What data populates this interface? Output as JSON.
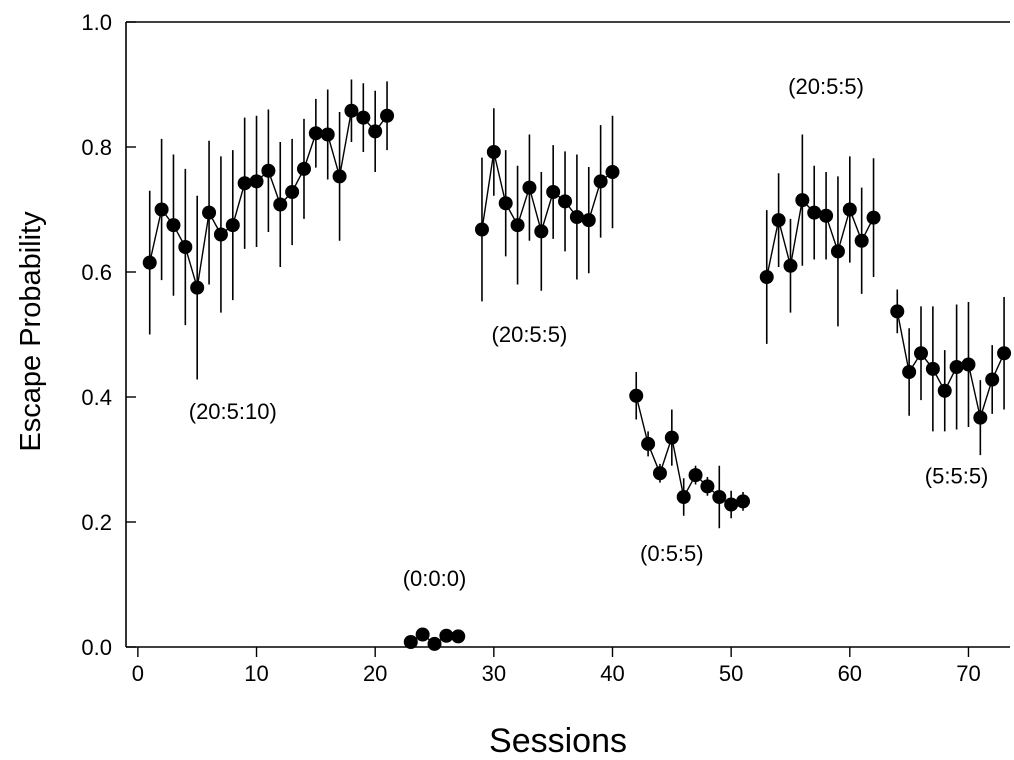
{
  "chart_data": {
    "type": "scatter",
    "title": "",
    "xlabel": "Sessions",
    "ylabel": "Escape Probability",
    "xlim": [
      -1,
      73.5
    ],
    "ylim": [
      0.0,
      1.0
    ],
    "xticks": [
      0,
      10,
      20,
      30,
      40,
      50,
      60,
      70
    ],
    "yticks": [
      0.0,
      0.2,
      0.4,
      0.6,
      0.8,
      1.0
    ],
    "xtick_labels": [
      "0",
      "10",
      "20",
      "30",
      "40",
      "50",
      "60",
      "70"
    ],
    "ytick_labels": [
      "0.0",
      "0.2",
      "0.4",
      "0.6",
      "0.8",
      "1.0"
    ],
    "grid": false,
    "marker_color": "#000000",
    "series": [
      {
        "x": [
          1,
          2,
          3,
          4,
          5,
          6,
          7,
          8,
          9,
          10,
          11,
          12,
          13,
          14,
          15,
          16,
          17,
          18,
          19,
          20,
          21
        ],
        "y": [
          0.615,
          0.7,
          0.675,
          0.64,
          0.575,
          0.695,
          0.66,
          0.675,
          0.742,
          0.745,
          0.762,
          0.708,
          0.728,
          0.765,
          0.822,
          0.82,
          0.753,
          0.858,
          0.847,
          0.825,
          0.85
        ],
        "err": [
          0.115,
          0.113,
          0.113,
          0.125,
          0.147,
          0.115,
          0.125,
          0.12,
          0.105,
          0.105,
          0.098,
          0.1,
          0.085,
          0.08,
          0.055,
          0.072,
          0.103,
          0.05,
          0.055,
          0.065,
          0.055
        ]
      },
      {
        "x": [
          23,
          24,
          25,
          26,
          27
        ],
        "y": [
          0.008,
          0.02,
          0.005,
          0.018,
          0.017
        ],
        "err": [
          0.006,
          0.005,
          0.004,
          0.005,
          0.004
        ]
      },
      {
        "x": [
          29,
          30,
          31,
          32,
          33,
          34,
          35,
          36,
          37,
          38,
          39,
          40
        ],
        "y": [
          0.668,
          0.792,
          0.71,
          0.675,
          0.735,
          0.665,
          0.728,
          0.713,
          0.688,
          0.683,
          0.745,
          0.76
        ],
        "err": [
          0.115,
          0.07,
          0.085,
          0.095,
          0.085,
          0.095,
          0.075,
          0.08,
          0.1,
          0.085,
          0.09,
          0.09
        ]
      },
      {
        "x": [
          42,
          43,
          44,
          45,
          46,
          47,
          48,
          49,
          50,
          51
        ],
        "y": [
          0.402,
          0.325,
          0.278,
          0.335,
          0.24,
          0.275,
          0.257,
          0.24,
          0.228,
          0.233
        ],
        "err": [
          0.038,
          0.02,
          0.015,
          0.045,
          0.03,
          0.015,
          0.015,
          0.05,
          0.022,
          0.015
        ]
      },
      {
        "x": [
          53,
          54,
          55,
          56,
          57,
          58,
          59,
          60,
          61,
          62
        ],
        "y": [
          0.592,
          0.683,
          0.61,
          0.715,
          0.695,
          0.69,
          0.633,
          0.7,
          0.65,
          0.687
        ],
        "err": [
          0.107,
          0.075,
          0.075,
          0.105,
          0.075,
          0.07,
          0.12,
          0.085,
          0.085,
          0.095
        ]
      },
      {
        "x": [
          64,
          65,
          66,
          67,
          68,
          69,
          70,
          71,
          72,
          73
        ],
        "y": [
          0.537,
          0.44,
          0.47,
          0.445,
          0.41,
          0.448,
          0.452,
          0.367,
          0.428,
          0.47
        ],
        "err": [
          0.035,
          0.07,
          0.075,
          0.1,
          0.065,
          0.1,
          0.1,
          0.06,
          0.055,
          0.09
        ]
      }
    ],
    "annotations": [
      {
        "text": "(20:5:10)",
        "x": 8,
        "y": 0.365
      },
      {
        "text": "(0:0:0)",
        "x": 25,
        "y": 0.098
      },
      {
        "text": "(20:5:5)",
        "x": 33,
        "y": 0.488
      },
      {
        "text": "(0:5:5)",
        "x": 45,
        "y": 0.138
      },
      {
        "text": "(20:5:5)",
        "x": 58,
        "y": 0.885
      },
      {
        "text": "(5:5:5)",
        "x": 69,
        "y": 0.262
      }
    ]
  }
}
